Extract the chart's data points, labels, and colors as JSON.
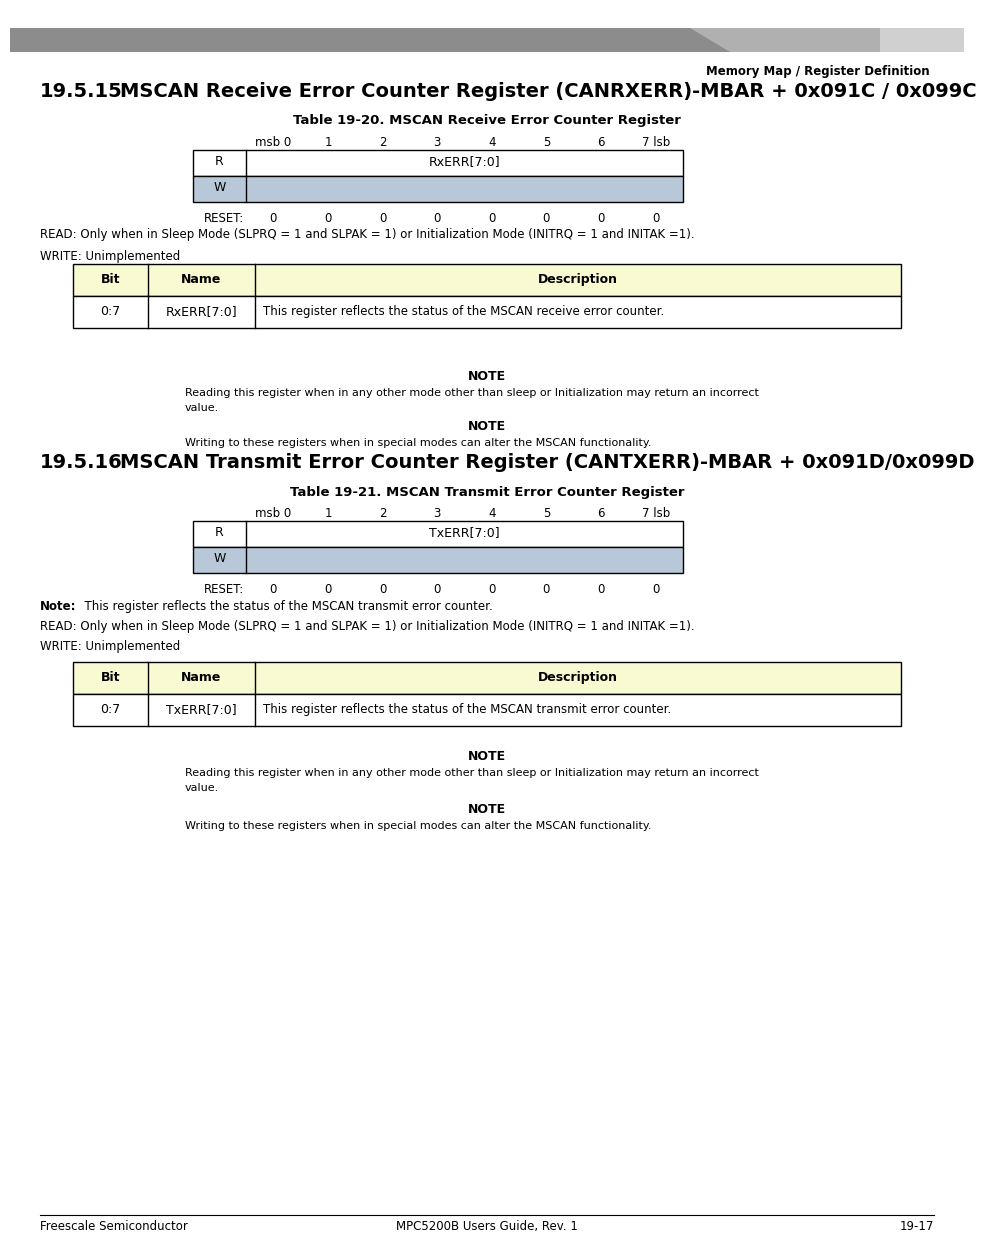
{
  "page_title": "Memory Map / Register Definition",
  "bg_color": "#ffffff",
  "section1_heading_num": "19.5.15",
  "section1_heading_text": "MSCAN Receive Error Counter Register (CANRXERR)-MBAR + 0x091C / 0x099C",
  "table1_title": "Table 19-20. MSCAN Receive Error Counter Register",
  "table1_R_label": "RxERR[7:0]",
  "table1_reset": [
    "0",
    "0",
    "0",
    "0",
    "0",
    "0",
    "0",
    "0"
  ],
  "read_note1": "READ: Only when in Sleep Mode (SLPRQ = 1 and SLPAK = 1) or Initialization Mode (INITRQ = 1 and INITAK =1).",
  "write_note1": "WRITE: Unimplemented",
  "desc_table1_row": [
    "0:7",
    "RxERR[7:0]",
    "This register reflects the status of the MSCAN receive error counter."
  ],
  "note1_title": "NOTE",
  "note1_line1": "Reading this register when in any other mode other than sleep or Initialization may return an incorrect",
  "note1_line2": "value.",
  "note2_title": "NOTE",
  "note2_body": "Writing to these registers when in special modes can alter the MSCAN functionality.",
  "section2_heading_num": "19.5.16",
  "section2_heading_text": "MSCAN Transmit Error Counter Register (CANTXERR)-MBAR + 0x091D/0x099D",
  "table2_title": "Table 19-21. MSCAN Transmit Error Counter Register",
  "table2_R_label": "TxERR[7:0]",
  "table2_reset": [
    "0",
    "0",
    "0",
    "0",
    "0",
    "0",
    "0",
    "0"
  ],
  "note_tx_bold": "Note:",
  "note_tx_rest": "  This register reflects the status of the MSCAN transmit error counter.",
  "read_note2": "READ: Only when in Sleep Mode (SLPRQ = 1 and SLPAK = 1) or Initialization Mode (INITRQ = 1 and INITAK =1).",
  "write_note2": "WRITE: Unimplemented",
  "desc_table2_row": [
    "0:7",
    "TxERR[7:0]",
    "This register reflects the status of the MSCAN transmit error counter."
  ],
  "note3_title": "NOTE",
  "note3_line1": "Reading this register when in any other mode other than sleep or Initialization may return an incorrect",
  "note3_line2": "value.",
  "note4_title": "NOTE",
  "note4_body": "Writing to these registers when in special modes can alter the MSCAN functionality.",
  "footer_center": "MPC5200B Users Guide, Rev. 1",
  "footer_left": "Freescale Semiconductor",
  "footer_right": "19-17",
  "col_headers": [
    "msb 0",
    "1",
    "2",
    "3",
    "4",
    "5",
    "6",
    "7 lsb"
  ],
  "header_fill": "#fafad2",
  "W_fill": "#b8c8d8",
  "gray_bar_color": "#8c8c8c",
  "gray_bar_light": "#b0b0b0",
  "gray_bar_lighter": "#d0d0d0"
}
